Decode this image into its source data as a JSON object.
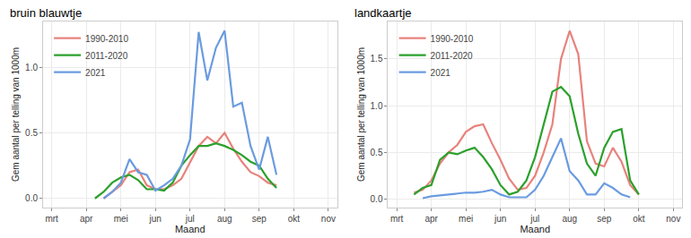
{
  "chart_data": [
    {
      "type": "line",
      "title": "bruin blauwtje",
      "x_label": "Maand",
      "y_label": "Gem aantal per telling van 1000m",
      "x": [
        4.25,
        4.5,
        4.75,
        5.0,
        5.25,
        5.5,
        5.75,
        6.0,
        6.25,
        6.5,
        6.75,
        7.0,
        7.25,
        7.5,
        7.75,
        8.0,
        8.25,
        8.5,
        8.75,
        9.0,
        9.25,
        9.5
      ],
      "series": [
        {
          "name": "1990-2010",
          "color": "#e8827c",
          "values": [
            null,
            0.0,
            0.05,
            0.1,
            0.2,
            0.22,
            0.1,
            0.07,
            0.07,
            0.1,
            0.15,
            0.28,
            0.4,
            0.47,
            0.42,
            0.5,
            0.38,
            0.28,
            0.2,
            0.17,
            0.12,
            0.1
          ]
        },
        {
          "name": "2011-2020",
          "color": "#2ca02c",
          "values": [
            0.0,
            0.05,
            0.12,
            0.16,
            0.18,
            0.14,
            0.07,
            0.07,
            0.06,
            0.12,
            0.25,
            0.33,
            0.4,
            0.4,
            0.42,
            0.4,
            0.37,
            0.33,
            0.28,
            0.25,
            0.15,
            0.08
          ]
        },
        {
          "name": "2021",
          "color": "#6a9be0",
          "values": [
            null,
            0.0,
            0.05,
            0.12,
            0.3,
            0.2,
            0.18,
            0.06,
            0.1,
            0.15,
            0.25,
            0.45,
            1.27,
            0.9,
            1.15,
            1.28,
            0.7,
            0.73,
            0.4,
            0.22,
            0.47,
            0.18
          ]
        }
      ],
      "xlim": [
        2.75,
        11.25
      ],
      "xticks": [
        {
          "value": 3,
          "label": "mrt"
        },
        {
          "value": 4,
          "label": "apr"
        },
        {
          "value": 5,
          "label": "mei"
        },
        {
          "value": 6,
          "label": "jun"
        },
        {
          "value": 7,
          "label": "jul"
        },
        {
          "value": 8,
          "label": "aug"
        },
        {
          "value": 9,
          "label": "sep"
        },
        {
          "value": 10,
          "label": "okt"
        },
        {
          "value": 11,
          "label": "nov"
        }
      ],
      "ylim": [
        -0.07,
        1.35
      ],
      "yticks": [
        {
          "value": 0,
          "label": "0.0"
        },
        {
          "value": 0.5,
          "label": "0.5"
        },
        {
          "value": 1,
          "label": "1.0"
        }
      ],
      "grid": true,
      "legend": "top left"
    },
    {
      "type": "line",
      "title": "landkaartje",
      "x_label": "Maand",
      "y_label": "Gem aantal per telling van 1000m",
      "x": [
        3.5,
        3.75,
        4.0,
        4.25,
        4.5,
        4.75,
        5.0,
        5.25,
        5.5,
        5.75,
        6.0,
        6.25,
        6.5,
        6.75,
        7.0,
        7.25,
        7.5,
        7.75,
        8.0,
        8.25,
        8.5,
        8.75,
        9.0,
        9.25,
        9.5,
        9.75,
        10.0
      ],
      "series": [
        {
          "name": "1990-2010",
          "color": "#e8827c",
          "values": [
            0.07,
            0.1,
            0.2,
            0.38,
            0.5,
            0.58,
            0.72,
            0.78,
            0.8,
            0.6,
            0.42,
            0.22,
            0.1,
            0.12,
            0.25,
            0.5,
            0.8,
            1.5,
            1.8,
            1.55,
            0.62,
            0.38,
            0.35,
            0.55,
            0.4,
            0.15,
            0.05
          ]
        },
        {
          "name": "2011-2020",
          "color": "#2ca02c",
          "values": [
            0.05,
            0.12,
            0.15,
            0.42,
            0.5,
            0.48,
            0.52,
            0.55,
            0.45,
            0.32,
            0.15,
            0.05,
            0.08,
            0.2,
            0.45,
            0.8,
            1.15,
            1.2,
            1.1,
            0.7,
            0.38,
            0.25,
            0.55,
            0.72,
            0.75,
            0.2,
            0.05
          ]
        },
        {
          "name": "2021",
          "color": "#6a9be0",
          "values": [
            null,
            0.01,
            0.03,
            0.04,
            0.05,
            0.06,
            0.07,
            0.07,
            0.08,
            0.1,
            0.05,
            0.02,
            0.02,
            0.02,
            0.1,
            0.25,
            0.45,
            0.65,
            0.3,
            0.2,
            0.05,
            0.05,
            0.17,
            0.12,
            0.05,
            0.02,
            null
          ]
        }
      ],
      "xlim": [
        2.75,
        11.25
      ],
      "xticks": [
        {
          "value": 3,
          "label": "mrt"
        },
        {
          "value": 4,
          "label": "apr"
        },
        {
          "value": 5,
          "label": "mei"
        },
        {
          "value": 6,
          "label": "jun"
        },
        {
          "value": 7,
          "label": "jul"
        },
        {
          "value": 8,
          "label": "aug"
        },
        {
          "value": 9,
          "label": "sep"
        },
        {
          "value": 10,
          "label": "okt"
        },
        {
          "value": 11,
          "label": "nov"
        }
      ],
      "ylim": [
        -0.09,
        1.9
      ],
      "yticks": [
        {
          "value": 0,
          "label": "0.0"
        },
        {
          "value": 0.5,
          "label": "0.5"
        },
        {
          "value": 1,
          "label": "1.0"
        },
        {
          "value": 1.5,
          "label": "1.5"
        }
      ],
      "grid": true,
      "legend": "top left"
    }
  ]
}
